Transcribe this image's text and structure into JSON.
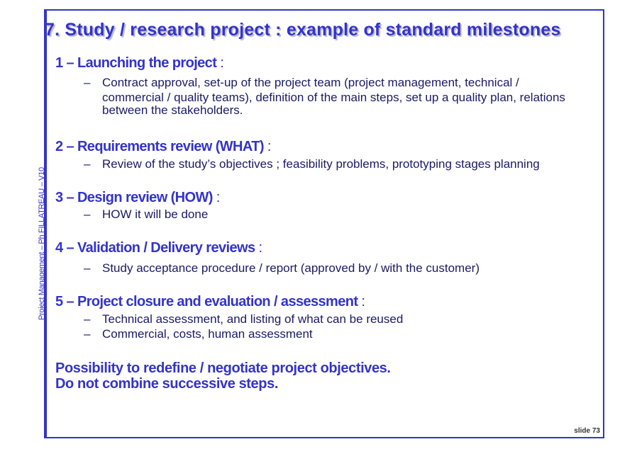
{
  "side_label": "Project Management – Ph FILLATREAU – V10",
  "title": "7. Study / research project : example of standard milestones",
  "sections": [
    {
      "heading": "1 – Launching the project",
      "colon": " :",
      "items": [
        [
          "Contract approval, set-up of the project team (project management, technical /",
          "commercial / quality teams), definition of the main steps, set up a quality plan, relations",
          "between the stakeholders."
        ]
      ]
    },
    {
      "heading": "2 – Requirements review (WHAT)",
      "colon": " :",
      "items": [
        [
          "Review of the study’s objectives ; feasibility problems, prototyping stages planning"
        ]
      ]
    },
    {
      "heading": "3 – Design review (HOW)",
      "colon": " :",
      "items": [
        [
          "HOW it will be done"
        ]
      ]
    },
    {
      "heading": "4 – Validation / Delivery reviews",
      "colon": " :",
      "items": [
        [
          "Study acceptance procedure / report (approved by / with the customer)"
        ]
      ]
    },
    {
      "heading": "5 – Project closure and evaluation / assessment",
      "colon": " :",
      "items": [
        [
          "Technical assessment, and listing of what can be reused"
        ],
        [
          "Commercial, costs, human assessment"
        ]
      ]
    }
  ],
  "closing": [
    "Possibility to redefine / negotiate project objectives.",
    "Do not combine successive steps."
  ],
  "dash": "–",
  "slide_number": "slide 73"
}
